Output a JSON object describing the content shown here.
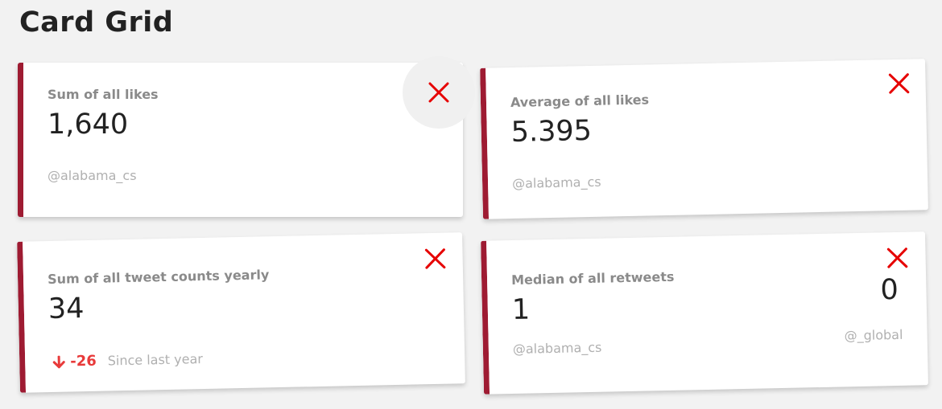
{
  "header": {
    "title": "Card Grid"
  },
  "cards": [
    {
      "label": "Sum of all likes",
      "value": "1,640",
      "handle": "@alabama_cs"
    },
    {
      "label": "Average of all likes",
      "value": "5.395",
      "handle": "@alabama_cs"
    },
    {
      "label": "Sum of all tweet counts yearly",
      "value": "34",
      "trend": {
        "direction_icon": "arrow-down-icon",
        "delta": "-26",
        "note": "Since last year"
      }
    },
    {
      "label": "Median of all retweets",
      "value": "1",
      "handle": "@alabama_cs",
      "secondary_value": "0",
      "secondary_handle": "@_global"
    }
  ],
  "icons": {
    "close": "close-icon"
  },
  "colors": {
    "accent_border": "#9e1b32",
    "close_icon": "#e60000",
    "trend_negative": "#e83a3a",
    "background": "#f2f2f2"
  }
}
